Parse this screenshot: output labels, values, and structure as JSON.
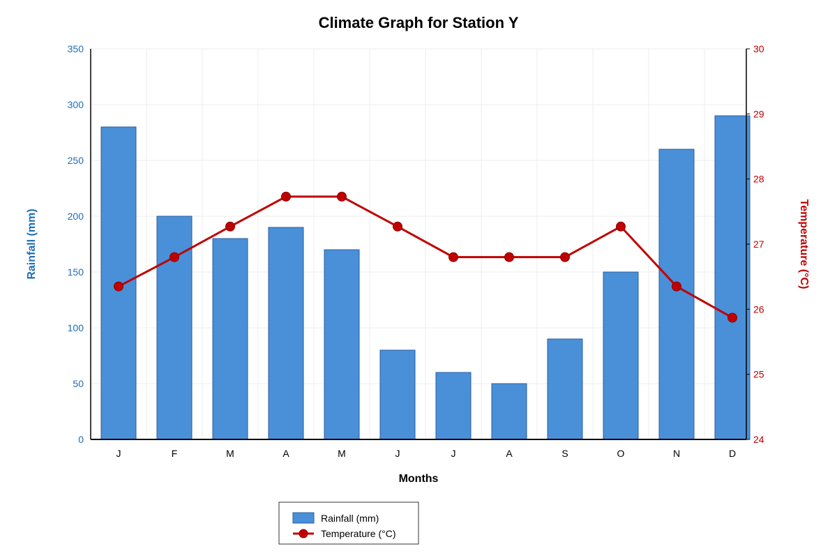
{
  "chart_data": {
    "type": "bar+line",
    "title": "Climate Graph for Station Y",
    "xlabel": "Months",
    "categories": [
      "J",
      "F",
      "M",
      "A",
      "M",
      "J",
      "J",
      "A",
      "S",
      "O",
      "N",
      "D"
    ],
    "y_left": {
      "label": "Rainfall (mm)",
      "range": [
        0,
        350
      ],
      "ticks": [
        0,
        50,
        100,
        150,
        200,
        250,
        300,
        350
      ],
      "color": "#1f6eb5"
    },
    "y_right": {
      "label": "Temperature (°C)",
      "range": [
        24,
        30
      ],
      "ticks": [
        24,
        25,
        26,
        27,
        28,
        29,
        30
      ],
      "color": "#c00000"
    },
    "series": [
      {
        "name": "Rainfall (mm)",
        "type": "bar",
        "axis": "left",
        "color": "#4a90d9",
        "values": [
          280,
          200,
          180,
          190,
          170,
          80,
          60,
          50,
          90,
          150,
          260,
          290
        ]
      },
      {
        "name": "Temperature (°C)",
        "type": "line",
        "axis": "right",
        "color": "#c00000",
        "values": [
          26.35,
          26.8,
          27.27,
          27.73,
          27.73,
          27.27,
          26.8,
          26.8,
          26.8,
          27.27,
          26.35,
          25.87
        ]
      }
    ],
    "grid": true,
    "legend_position": "bottom-center"
  }
}
